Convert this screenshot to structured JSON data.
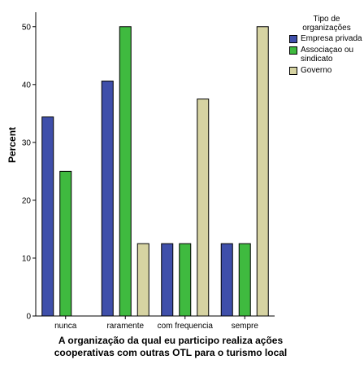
{
  "chart_data": {
    "type": "bar",
    "categories": [
      "nunca",
      "raramente",
      "com frequencia",
      "sempre"
    ],
    "series": [
      {
        "name": "Empresa privada",
        "color": "#3f4faa",
        "values": [
          34.4,
          40.6,
          12.5,
          12.5
        ]
      },
      {
        "name": "Associaçao ou sindicato",
        "color": "#3fba3f",
        "values": [
          25.0,
          50.0,
          12.5,
          12.5
        ]
      },
      {
        "name": "Governo",
        "color": "#d6d3a2",
        "values": [
          0,
          12.5,
          37.5,
          50.0
        ]
      }
    ],
    "legend_title": "Tipo de organizações",
    "xlabel": "A organização da qual eu participo realiza ações cooperativas com outras OTL para o turismo local",
    "ylabel": "Percent",
    "ylim": [
      0,
      50
    ],
    "yticks": [
      0,
      10,
      20,
      30,
      40,
      50
    ],
    "legend_position": "top-right"
  }
}
